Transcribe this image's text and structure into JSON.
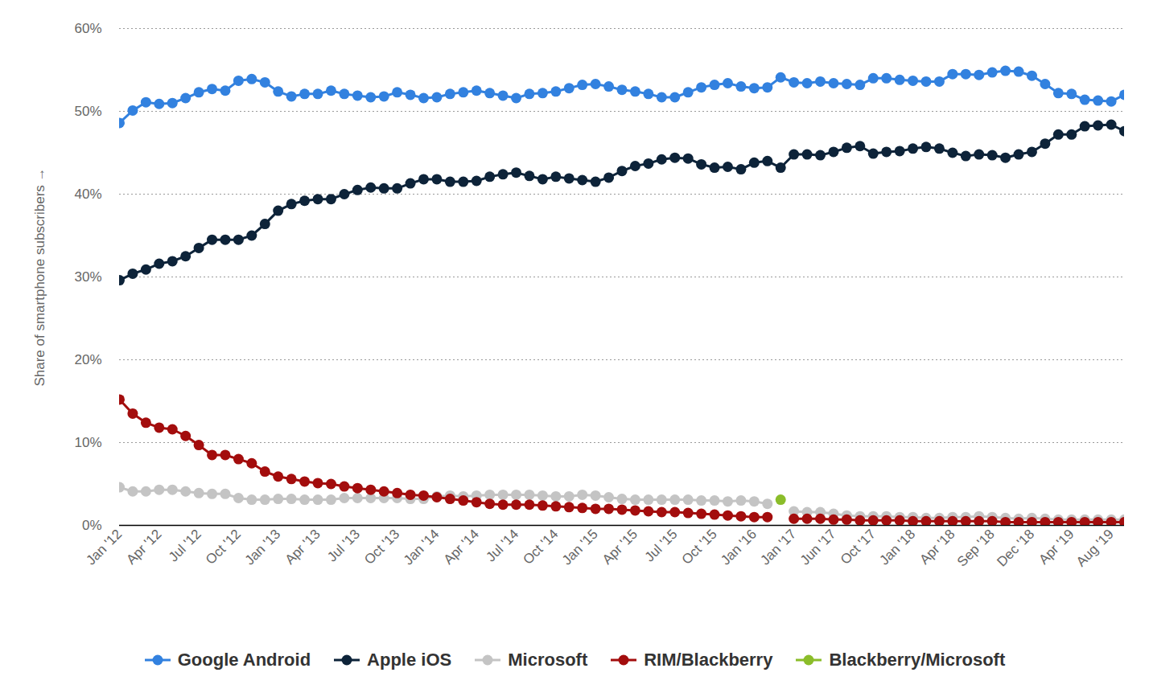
{
  "chart_data": {
    "type": "line",
    "y_label": "Share of smartphone subscribers",
    "categories": [
      "Jan '12",
      null,
      null,
      "Apr '12",
      null,
      null,
      "Jul '12",
      null,
      null,
      "Oct '12",
      null,
      null,
      "Jan '13",
      null,
      null,
      "Apr '13",
      null,
      null,
      "Jul '13",
      null,
      null,
      "Oct '13",
      null,
      null,
      "Jan '14",
      null,
      null,
      "Apr '14",
      null,
      null,
      "Jul '14",
      null,
      null,
      "Oct '14",
      null,
      null,
      "Jan '15",
      null,
      null,
      "Apr '15",
      null,
      null,
      "Jul '15",
      null,
      null,
      "Oct '15",
      null,
      null,
      "Jan '16",
      null,
      null,
      "Jan '17",
      null,
      null,
      "Jun '17",
      null,
      null,
      "Oct '17",
      null,
      null,
      "Jan '18",
      null,
      null,
      "Apr '18",
      null,
      null,
      "Sep '18",
      null,
      null,
      "Dec '18",
      null,
      null,
      "Apr '19",
      null,
      null,
      "Aug '19",
      null
    ],
    "series": [
      {
        "name": "Google Android",
        "color": "#3281df",
        "values": [
          48.6,
          50.1,
          51.1,
          50.9,
          51.0,
          51.6,
          52.3,
          52.7,
          52.5,
          53.7,
          53.9,
          53.5,
          52.4,
          51.8,
          52.1,
          52.1,
          52.5,
          52.1,
          51.9,
          51.7,
          51.8,
          52.3,
          52.0,
          51.6,
          51.7,
          52.1,
          52.3,
          52.5,
          52.2,
          51.9,
          51.6,
          52.1,
          52.2,
          52.4,
          52.8,
          53.2,
          53.3,
          53.0,
          52.6,
          52.4,
          52.1,
          51.7,
          51.7,
          52.3,
          52.9,
          53.2,
          53.4,
          53.0,
          52.8,
          52.9,
          54.1,
          53.5,
          53.4,
          53.6,
          53.4,
          53.3,
          53.2,
          54.0,
          54.0,
          53.8,
          53.7,
          53.6,
          53.6,
          54.5,
          54.5,
          54.4,
          54.7,
          54.9,
          54.8,
          54.3,
          53.3,
          52.2,
          52.1,
          51.4,
          51.3,
          51.2,
          52.0
        ]
      },
      {
        "name": "Apple iOS",
        "color": "#0d2339",
        "values": [
          29.6,
          30.4,
          30.9,
          31.6,
          31.9,
          32.5,
          33.5,
          34.5,
          34.5,
          34.5,
          35.0,
          36.4,
          38.0,
          38.8,
          39.2,
          39.4,
          39.4,
          40.0,
          40.5,
          40.8,
          40.7,
          40.7,
          41.3,
          41.8,
          41.8,
          41.5,
          41.5,
          41.6,
          42.1,
          42.4,
          42.6,
          42.2,
          41.8,
          42.1,
          41.9,
          41.7,
          41.5,
          42.0,
          42.8,
          43.4,
          43.7,
          44.2,
          44.4,
          44.3,
          43.6,
          43.2,
          43.3,
          43.0,
          43.8,
          44.0,
          43.2,
          44.8,
          44.8,
          44.7,
          45.1,
          45.6,
          45.8,
          44.9,
          45.1,
          45.2,
          45.5,
          45.7,
          45.5,
          45.0,
          44.6,
          44.8,
          44.7,
          44.4,
          44.8,
          45.1,
          46.1,
          47.2,
          47.2,
          48.2,
          48.3,
          48.4,
          47.6
        ]
      },
      {
        "name": "Microsoft",
        "color": "#c4c4c4",
        "values": [
          4.6,
          4.1,
          4.1,
          4.3,
          4.3,
          4.1,
          3.9,
          3.8,
          3.8,
          3.3,
          3.1,
          3.1,
          3.2,
          3.2,
          3.1,
          3.1,
          3.1,
          3.3,
          3.3,
          3.3,
          3.3,
          3.3,
          3.2,
          3.2,
          3.5,
          3.6,
          3.5,
          3.6,
          3.7,
          3.7,
          3.7,
          3.7,
          3.6,
          3.5,
          3.5,
          3.7,
          3.6,
          3.4,
          3.2,
          3.1,
          3.1,
          3.1,
          3.1,
          3.1,
          3.0,
          3.0,
          2.9,
          3.0,
          2.9,
          2.6,
          null,
          1.7,
          1.6,
          1.6,
          1.4,
          1.2,
          1.1,
          1.1,
          1.1,
          1.0,
          1.0,
          0.9,
          0.9,
          1.0,
          1.0,
          1.1,
          1.0,
          0.9,
          0.8,
          0.9,
          0.8,
          0.7,
          0.7,
          0.7,
          0.7,
          0.7,
          0.7
        ]
      },
      {
        "name": "RIM/Blackberry",
        "color": "#a30d0d",
        "values": [
          15.2,
          13.5,
          12.4,
          11.8,
          11.6,
          10.8,
          9.7,
          8.5,
          8.5,
          8.0,
          7.5,
          6.5,
          5.9,
          5.6,
          5.3,
          5.1,
          5.0,
          4.7,
          4.5,
          4.3,
          4.1,
          3.9,
          3.7,
          3.6,
          3.4,
          3.2,
          3.0,
          2.8,
          2.6,
          2.5,
          2.5,
          2.5,
          2.4,
          2.3,
          2.2,
          2.1,
          2.0,
          2.0,
          1.9,
          1.8,
          1.7,
          1.6,
          1.6,
          1.5,
          1.4,
          1.3,
          1.2,
          1.1,
          1.0,
          1.0,
          null,
          0.8,
          0.8,
          0.8,
          0.7,
          0.7,
          0.6,
          0.6,
          0.6,
          0.6,
          0.5,
          0.5,
          0.5,
          0.5,
          0.5,
          0.5,
          0.5,
          0.4,
          0.4,
          0.4,
          0.4,
          0.4,
          0.4,
          0.4,
          0.4,
          0.4,
          0.4
        ]
      },
      {
        "name": "Blackberry/Microsoft",
        "color": "#8bbd2a",
        "values": [
          null,
          null,
          null,
          null,
          null,
          null,
          null,
          null,
          null,
          null,
          null,
          null,
          null,
          null,
          null,
          null,
          null,
          null,
          null,
          null,
          null,
          null,
          null,
          null,
          null,
          null,
          null,
          null,
          null,
          null,
          null,
          null,
          null,
          null,
          null,
          null,
          null,
          null,
          null,
          null,
          null,
          null,
          null,
          null,
          null,
          null,
          null,
          null,
          null,
          null,
          3.1,
          null,
          null,
          null,
          null,
          null,
          null,
          null,
          null,
          null,
          null,
          null,
          null,
          null,
          null,
          null,
          null,
          null,
          null,
          null,
          null,
          null,
          null,
          null,
          null,
          null,
          null
        ]
      }
    ],
    "ylim": [
      0,
      60
    ],
    "yticks": [
      {
        "value": 0,
        "label": "0%"
      },
      {
        "value": 10,
        "label": "10%"
      },
      {
        "value": 20,
        "label": "20%"
      },
      {
        "value": 30,
        "label": "30%"
      },
      {
        "value": 40,
        "label": "40%"
      },
      {
        "value": 50,
        "label": "50%"
      },
      {
        "value": 60,
        "label": "60%"
      }
    ],
    "grid": true,
    "legend": "bottom",
    "marker": "circle",
    "line_style": "solid"
  }
}
